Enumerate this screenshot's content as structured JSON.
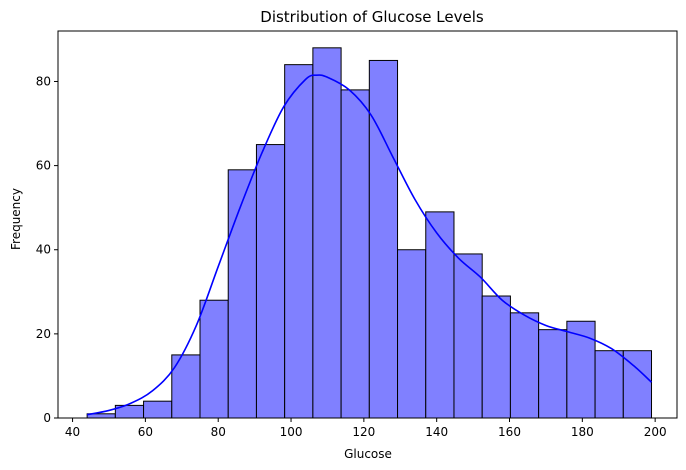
{
  "chart_data": {
    "type": "bar",
    "title": "Distribution of Glucose Levels",
    "xlabel": "Glucose",
    "ylabel": "Frequency",
    "xlim": [
      36,
      206
    ],
    "ylim": [
      0,
      92
    ],
    "xticks": [
      40,
      60,
      80,
      100,
      120,
      140,
      160,
      180,
      200
    ],
    "yticks": [
      0,
      20,
      40,
      60,
      80
    ],
    "bin_edges": [
      44,
      51.75,
      59.5,
      67.25,
      75,
      82.75,
      90.5,
      98.25,
      106,
      113.75,
      121.5,
      129.25,
      137,
      144.75,
      152.5,
      160.25,
      168,
      175.75,
      183.5,
      191.25,
      199
    ],
    "counts": [
      1,
      3,
      4,
      15,
      28,
      59,
      65,
      84,
      88,
      78,
      85,
      40,
      49,
      39,
      29,
      25,
      21,
      23,
      16,
      16
    ],
    "bar_color": "#8080ff",
    "kde": {
      "color": "#0000ff",
      "x": [
        44,
        50,
        56,
        62,
        68,
        74,
        80,
        86,
        92,
        98,
        104,
        107,
        110,
        116,
        122,
        128,
        134,
        140,
        146,
        152,
        158,
        164,
        170,
        176,
        182,
        188,
        194,
        199
      ],
      "y": [
        0.8,
        1.8,
        3.5,
        6.5,
        12,
        22,
        36,
        50,
        63,
        74,
        80.5,
        81.5,
        81,
        78,
        72,
        62,
        52,
        44,
        38,
        33.5,
        28,
        24.5,
        22,
        20.5,
        19,
        16.5,
        12.5,
        8.5
      ]
    }
  }
}
